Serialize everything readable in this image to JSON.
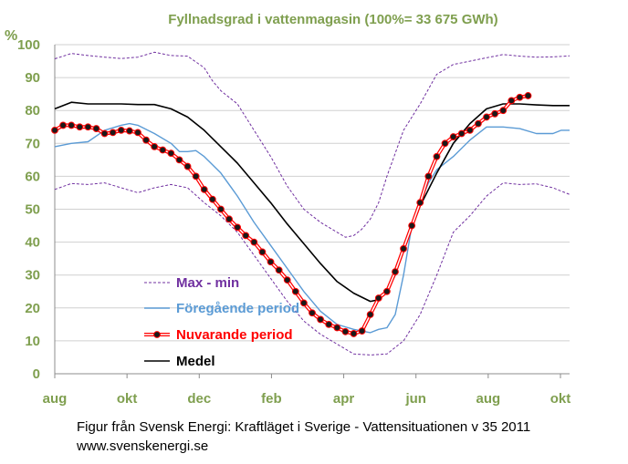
{
  "chart_data": {
    "type": "line",
    "title": "Fyllnadsgrad  i vattenmagasin (100%= 33 675 GWh)",
    "ylabel": "%",
    "xlabel": "",
    "ylim": [
      0,
      100
    ],
    "xlim": [
      0,
      62
    ],
    "ytick_values": [
      0,
      10,
      20,
      30,
      40,
      50,
      60,
      70,
      80,
      90,
      100
    ],
    "yticks": [
      "0",
      "10",
      "20",
      "30",
      "40",
      "50",
      "60",
      "70",
      "80",
      "90",
      "100"
    ],
    "xticks": [
      {
        "label": "aug",
        "x": 0
      },
      {
        "label": "okt",
        "x": 8.7
      },
      {
        "label": "dec",
        "x": 17.4
      },
      {
        "label": "feb",
        "x": 26.1
      },
      {
        "label": "apr",
        "x": 34.8
      },
      {
        "label": "jun",
        "x": 43.5
      },
      {
        "label": "aug",
        "x": 52.2
      },
      {
        "label": "okt",
        "x": 60.9
      }
    ],
    "grid": true,
    "legend_position": "bottom-left",
    "series": [
      {
        "name": "Max - min",
        "color": "#7030a0",
        "style": "dashed",
        "x": [
          0,
          2,
          4,
          6,
          8,
          10,
          12,
          14,
          16,
          18,
          19,
          20,
          22,
          24,
          26,
          28,
          30,
          32,
          34,
          35,
          36,
          37,
          38,
          39,
          40,
          42,
          44,
          46,
          48,
          50,
          52,
          54,
          56,
          58,
          60,
          62
        ],
        "values": [
          95.7,
          97.3,
          96.7,
          96.2,
          95.8,
          96.2,
          97.7,
          96.7,
          96.5,
          93,
          89,
          86,
          82,
          74,
          66,
          57,
          50,
          46,
          43,
          41.5,
          42,
          44,
          47,
          52,
          60,
          74,
          82,
          91,
          94,
          95,
          96,
          97,
          96.5,
          96.2,
          96.3,
          96.6
        ]
      },
      {
        "name": "",
        "color": "#7030a0",
        "style": "dashed",
        "x": [
          0,
          2,
          4,
          6,
          8,
          10,
          12,
          14,
          16,
          18,
          20,
          22,
          24,
          26,
          28,
          30,
          32,
          34,
          36,
          38,
          40,
          42,
          44,
          46,
          48,
          50,
          52,
          54,
          56,
          58,
          60,
          62
        ],
        "values": [
          56,
          57.8,
          57.5,
          58,
          56.5,
          55,
          56.5,
          57.5,
          56.5,
          52,
          48,
          43,
          36,
          29,
          22,
          16,
          12,
          9,
          6,
          5.7,
          6,
          10,
          18,
          30,
          43,
          48,
          54,
          58,
          57.5,
          57.7,
          56.5,
          54.5
        ]
      },
      {
        "name": "Föregående period",
        "color": "#5b9bd5",
        "style": "solid",
        "x": [
          0,
          2,
          4,
          6,
          8,
          9,
          10,
          12,
          14,
          15,
          16,
          17,
          18,
          20,
          22,
          24,
          26,
          28,
          30,
          32,
          34,
          36,
          38,
          39,
          40,
          41,
          42,
          43,
          44,
          45,
          46,
          48,
          50,
          52,
          54,
          56,
          58,
          60,
          61,
          62
        ],
        "values": [
          69,
          70,
          70.5,
          74,
          75.5,
          76,
          75.5,
          73,
          70,
          67.5,
          67.5,
          67.8,
          66,
          61,
          54,
          46,
          39,
          32,
          25,
          19,
          15,
          13.5,
          12.5,
          13.5,
          14,
          18,
          30,
          45,
          52,
          58,
          62,
          66,
          71,
          75,
          75,
          74.5,
          73,
          73,
          74,
          74
        ]
      },
      {
        "name": "Medel",
        "color": "#000000",
        "style": "solid",
        "x": [
          0,
          2,
          4,
          6,
          8,
          10,
          12,
          14,
          16,
          18,
          20,
          22,
          24,
          26,
          28,
          30,
          32,
          34,
          36,
          38,
          39,
          40,
          41,
          42,
          44,
          46,
          48,
          50,
          52,
          54,
          56,
          58,
          60,
          62
        ],
        "values": [
          80.5,
          82.5,
          82,
          82,
          82,
          81.8,
          81.8,
          80.5,
          78,
          74,
          69,
          64,
          58,
          52,
          45.5,
          39.5,
          33.5,
          28,
          24.5,
          22,
          22.5,
          25,
          30,
          38,
          51,
          61,
          70,
          76,
          80.5,
          82,
          82,
          81.7,
          81.5,
          81.5
        ]
      },
      {
        "name": "Nuvarande period",
        "color": "#ff0000",
        "style": "marker",
        "x": [
          0,
          1,
          2,
          3,
          4,
          5,
          6,
          7,
          8,
          9,
          10,
          11,
          12,
          13,
          14,
          15,
          16,
          17,
          18,
          19,
          20,
          21,
          22,
          23,
          24,
          25,
          26,
          27,
          28,
          29,
          30,
          31,
          32,
          33,
          34,
          35,
          36,
          37,
          38,
          39,
          40,
          41,
          42,
          43,
          44,
          45,
          46,
          47,
          48,
          49,
          50,
          51,
          52,
          53,
          54,
          55,
          56,
          57
        ],
        "values": [
          74,
          75.5,
          75.5,
          75,
          75,
          74.5,
          73,
          73.3,
          74,
          73.8,
          73.3,
          71,
          69,
          68,
          67,
          65,
          63,
          60,
          56,
          53,
          50,
          47,
          44.5,
          42,
          40,
          37,
          34,
          31.5,
          28.5,
          25,
          21.5,
          18.5,
          16.5,
          15,
          14,
          12.8,
          12.2,
          13,
          18,
          23,
          25,
          31,
          38,
          45,
          52,
          60,
          66,
          70,
          72,
          73,
          74,
          76,
          78,
          79,
          80,
          83,
          84,
          84.5
        ]
      }
    ]
  },
  "caption": {
    "line1": "Figur från Svensk Energi: Kraftläget i Sverige - Vattensituationen v 35 2011",
    "line2": "www.svenskenergi.se"
  }
}
